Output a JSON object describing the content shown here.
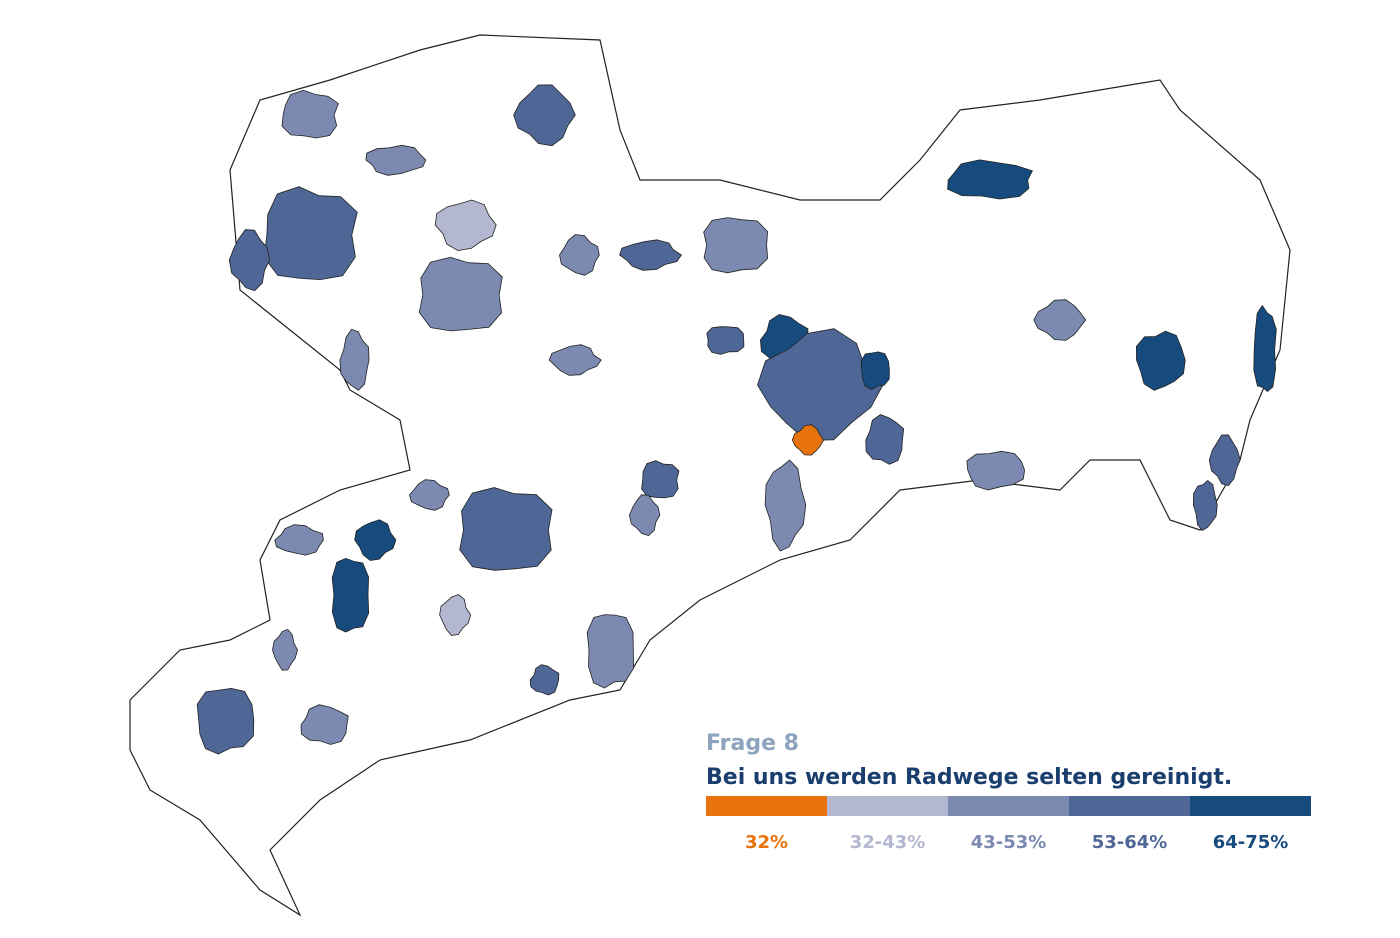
{
  "title": "Frage 8",
  "subtitle": "Bei uns werden Radwege selten gereinigt.",
  "legend": [
    {
      "label": "32%",
      "color": "#e8720c"
    },
    {
      "label": "32-43%",
      "color": "#b3b7d0"
    },
    {
      "label": "43-53%",
      "color": "#7c8ab2"
    },
    {
      "label": "53-64%",
      "color": "#4f6796"
    },
    {
      "label": "64-75%",
      "color": "#174b7e"
    }
  ]
}
